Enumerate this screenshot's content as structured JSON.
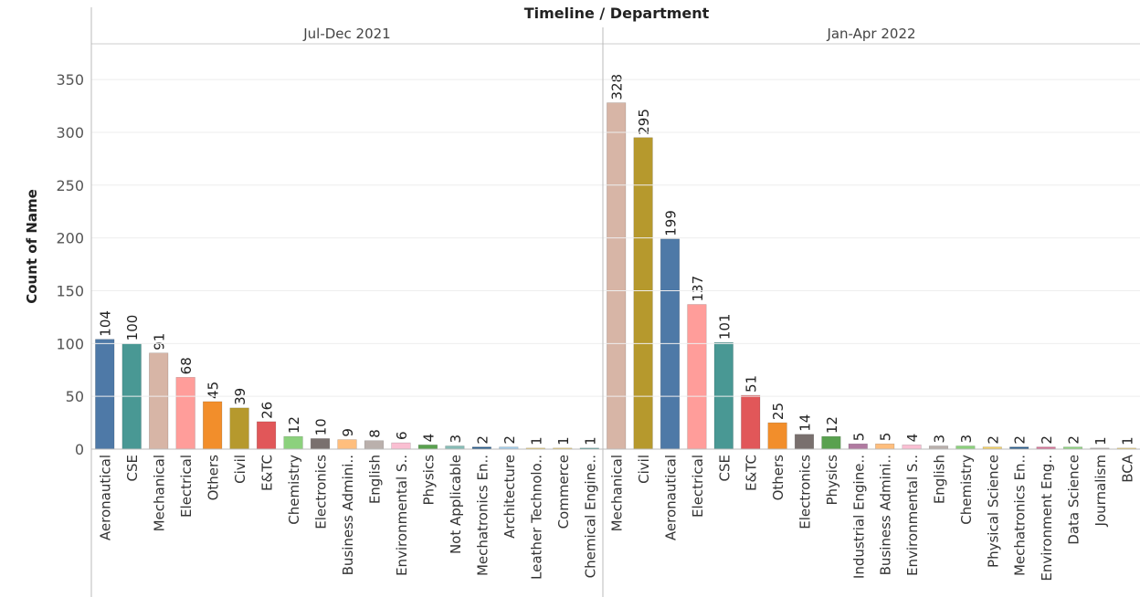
{
  "chart_data": {
    "type": "bar",
    "title": "Timeline / Department",
    "y_label": "Count of Name",
    "ylim": [
      0,
      370
    ],
    "yticks": [
      0,
      50,
      100,
      150,
      200,
      250,
      300,
      350
    ],
    "grid": true,
    "panels": [
      {
        "name": "Jul-Dec 2021",
        "categories": [
          "Aeronautical",
          "CSE",
          "Mechanical",
          "Electrical",
          "Others",
          "Civil",
          "E&TC",
          "Chemistry",
          "Electronics",
          "Business Admini..",
          "English",
          "Environmental S..",
          "Physics",
          "Not Applicable",
          "Mechatronics En..",
          "Architecture",
          "Leather Technolo..",
          "Commerce",
          "Chemical Engine.."
        ],
        "values": [
          104,
          100,
          91,
          68,
          45,
          39,
          26,
          12,
          10,
          9,
          8,
          6,
          4,
          3,
          2,
          2,
          1,
          1,
          1
        ],
        "colors": [
          "#4e79a7",
          "#499894",
          "#d7b5a6",
          "#ff9d9a",
          "#f28e2b",
          "#b6992d",
          "#e15759",
          "#8cd17d",
          "#79706e",
          "#ffbe7d",
          "#bab0ac",
          "#fabfd2",
          "#59a14f",
          "#86bcb6",
          "#2b5c8a",
          "#a0cbe8",
          "#f1ce63",
          "#f1ce63",
          "#499894"
        ]
      },
      {
        "name": "Jan-Apr 2022",
        "categories": [
          "Mechanical",
          "Civil",
          "Aeronautical",
          "Electrical",
          "CSE",
          "E&TC",
          "Others",
          "Electronics",
          "Physics",
          "Industrial Engine..",
          "Business Admini..",
          "Environmental S..",
          "English",
          "Chemistry",
          "Physical Science",
          "Mechatronics En..",
          "Environment Eng..",
          "Data Science",
          "Journalism",
          "BCA"
        ],
        "values": [
          328,
          295,
          199,
          137,
          101,
          51,
          25,
          14,
          12,
          5,
          5,
          4,
          3,
          3,
          2,
          2,
          2,
          2,
          1,
          1
        ],
        "colors": [
          "#d7b5a6",
          "#b6992d",
          "#4e79a7",
          "#ff9d9a",
          "#499894",
          "#e15759",
          "#f28e2b",
          "#79706e",
          "#59a14f",
          "#b07aa1",
          "#ffbe7d",
          "#fabfd2",
          "#bab0ac",
          "#8cd17d",
          "#f1ce63",
          "#2b5c8a",
          "#d37295",
          "#8cd17d",
          "#bab0ac",
          "#f1ce63"
        ]
      }
    ]
  }
}
